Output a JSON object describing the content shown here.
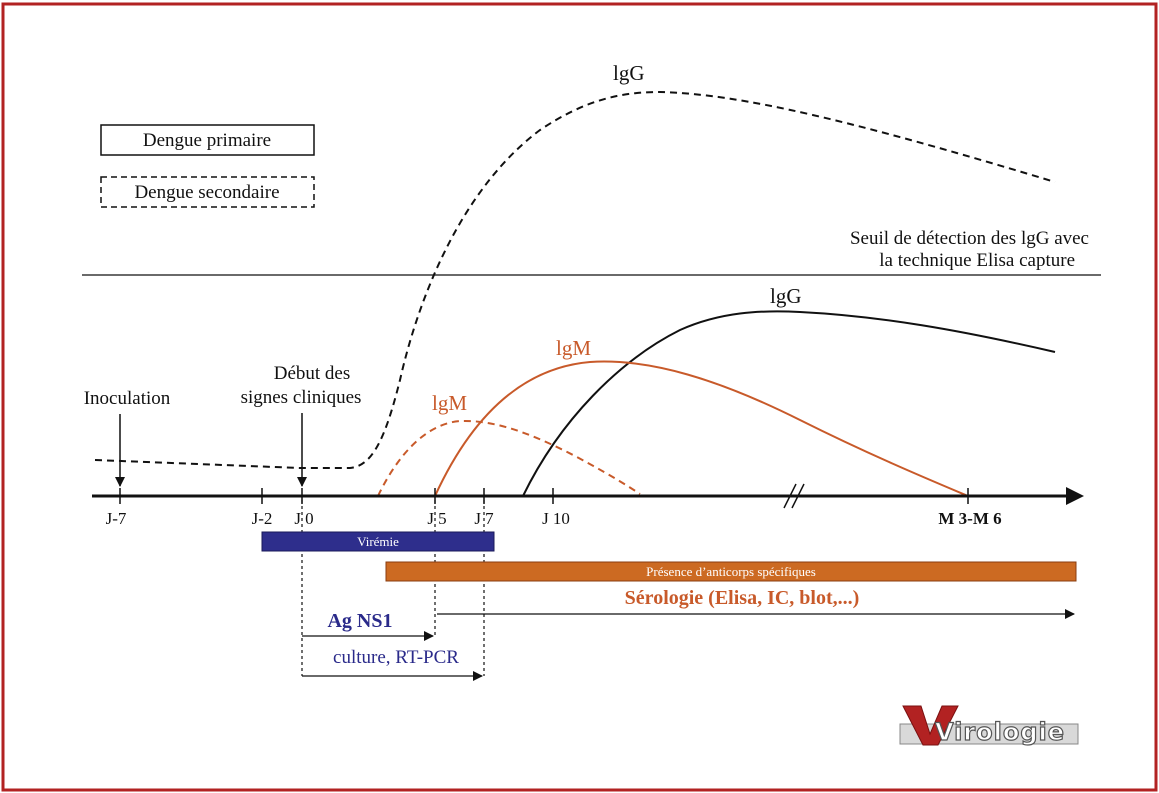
{
  "legend": {
    "primary": "Dengue primaire",
    "secondary": "Dengue secondaire"
  },
  "threshold": {
    "line1": "Seuil de détection des lgG avec",
    "line2": "la technique Elisa capture"
  },
  "curves": {
    "igg_secondary": "lgG",
    "igg_primary": "lgG",
    "igm_primary": "lgM",
    "igm_secondary": "lgM"
  },
  "events": {
    "inoculation": "Inoculation",
    "onset_line1": "Début des",
    "onset_line2": "signes cliniques"
  },
  "ticks": {
    "j_minus7": "J-7",
    "j_minus2": "J-2",
    "j0": "J 0",
    "j5": "J 5",
    "j7": "J 7",
    "j10": "J 10",
    "m3m6": "M 3-M 6"
  },
  "bars": {
    "viremia": "Virémie",
    "antibodies": "Présence d’anticorps spécifiques"
  },
  "tests": {
    "serology": "Sérologie (Elisa, IC, blot,...)",
    "ns1": "Ag NS1",
    "culture": "culture, RT-PCR"
  },
  "logo": "Virologie",
  "colors": {
    "border": "#b22222",
    "igm": "#c85a2a",
    "viremia_bar": "#2e2e8c",
    "antibody_bar": "#cc6a22",
    "ns1_text": "#2a2a8a"
  }
}
